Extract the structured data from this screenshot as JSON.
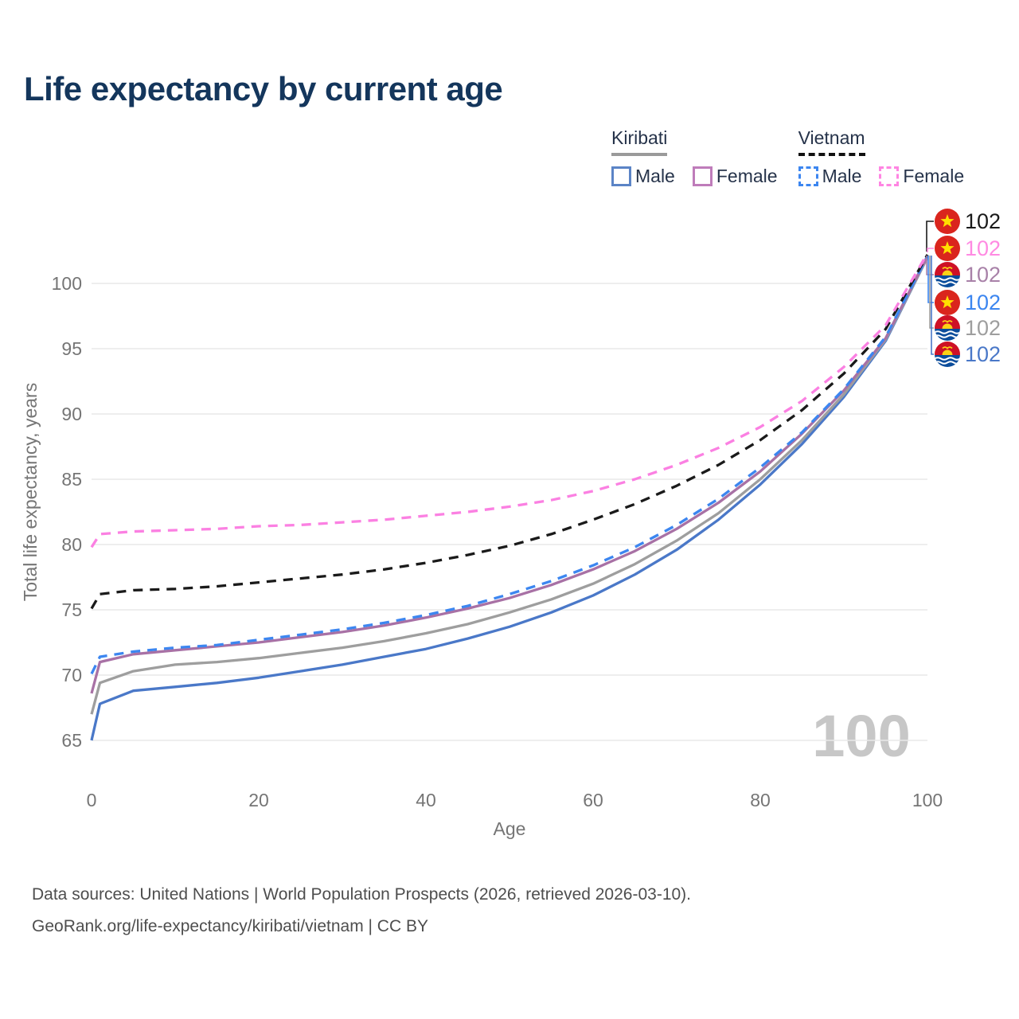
{
  "title": "Life expectancy by current age",
  "legend": {
    "kiribati": {
      "title": "Kiribati",
      "male": "Male",
      "female": "Female"
    },
    "vietnam": {
      "title": "Vietnam",
      "male": "Male",
      "female": "Female"
    }
  },
  "footer": {
    "line1": "Data sources: United Nations | World Population Prospects (2026, retrieved 2026-03-10).",
    "line2": "GeoRank.org/life-expectancy/kiribati/vietnam | CC BY"
  },
  "colors": {
    "title_text": "#14365c",
    "axis_text": "#757575",
    "gridline": "#e9e9e9",
    "watermark": "#c7c7c7",
    "vietnam_flag_red": "#da251d",
    "vietnam_flag_star": "#ffdf00",
    "kiribati_flag_red": "#ce1126",
    "kiribati_flag_blue": "#0a4c9b",
    "kiribati_flag_yellow": "#fcd116"
  },
  "chart_data": {
    "type": "line",
    "title": "Life expectancy by current age",
    "xlabel": "Age",
    "ylabel": "Total life expectancy, years",
    "xlim": [
      0,
      100
    ],
    "ylim": [
      65,
      102.5
    ],
    "x_ticks": [
      0,
      20,
      40,
      60,
      80,
      100
    ],
    "y_ticks": [
      65,
      70,
      75,
      80,
      85,
      90,
      95,
      100
    ],
    "grid": "horizontal",
    "legend_position": "top-right",
    "age_indicator": "100",
    "x": [
      0,
      1,
      5,
      10,
      15,
      20,
      25,
      30,
      35,
      40,
      45,
      50,
      55,
      60,
      65,
      70,
      75,
      80,
      85,
      90,
      95,
      100
    ],
    "series": [
      {
        "name": "Vietnam Female",
        "country": "Vietnam",
        "sex": "Female",
        "style": "dashed",
        "color": "#fb80e2",
        "values": [
          79.8,
          80.8,
          81.0,
          81.1,
          81.2,
          81.4,
          81.5,
          81.7,
          81.9,
          82.2,
          82.5,
          82.9,
          83.4,
          84.1,
          85.0,
          86.1,
          87.4,
          89.0,
          91.0,
          93.6,
          96.8,
          102.3
        ]
      },
      {
        "name": "Vietnam (both sexes)",
        "country": "Vietnam",
        "sex": "All",
        "style": "dashed",
        "color": "#1a1a1a",
        "values": [
          75.1,
          76.2,
          76.5,
          76.6,
          76.8,
          77.1,
          77.4,
          77.7,
          78.1,
          78.6,
          79.2,
          79.9,
          80.8,
          81.9,
          83.1,
          84.5,
          86.1,
          88.0,
          90.3,
          93.1,
          96.5,
          102.2
        ]
      },
      {
        "name": "Vietnam Male",
        "country": "Vietnam",
        "sex": "Male",
        "style": "dashed",
        "color": "#3c86f0",
        "values": [
          70.1,
          71.4,
          71.8,
          72.1,
          72.3,
          72.7,
          73.1,
          73.5,
          74.0,
          74.6,
          75.3,
          76.2,
          77.2,
          78.4,
          79.8,
          81.5,
          83.5,
          85.9,
          88.6,
          91.9,
          95.9,
          102.1
        ]
      },
      {
        "name": "Kiribati Female",
        "country": "Kiribati",
        "sex": "Female",
        "style": "solid",
        "color": "#a871a5",
        "values": [
          68.6,
          71.0,
          71.6,
          71.9,
          72.2,
          72.5,
          72.9,
          73.3,
          73.8,
          74.4,
          75.1,
          75.9,
          76.9,
          78.1,
          79.5,
          81.2,
          83.2,
          85.6,
          88.5,
          91.8,
          95.8,
          102.1
        ]
      },
      {
        "name": "Kiribati (both sexes)",
        "country": "Kiribati",
        "sex": "All",
        "style": "solid",
        "color": "#9e9e9e",
        "values": [
          67.0,
          69.4,
          70.3,
          70.8,
          71.0,
          71.3,
          71.7,
          72.1,
          72.6,
          73.2,
          73.9,
          74.8,
          75.8,
          77.0,
          78.5,
          80.3,
          82.4,
          85.0,
          88.0,
          91.5,
          95.7,
          102.0
        ]
      },
      {
        "name": "Kiribati Male",
        "country": "Kiribati",
        "sex": "Male",
        "style": "solid",
        "color": "#4a78c8",
        "values": [
          65.0,
          67.8,
          68.8,
          69.1,
          69.4,
          69.8,
          70.3,
          70.8,
          71.4,
          72.0,
          72.8,
          73.7,
          74.8,
          76.1,
          77.7,
          79.6,
          81.9,
          84.6,
          87.7,
          91.3,
          95.6,
          102.0
        ]
      }
    ],
    "end_labels": [
      {
        "country": "Vietnam",
        "series": "Vietnam (both sexes)",
        "value": "102",
        "color": "#1a1a1a"
      },
      {
        "country": "Vietnam",
        "series": "Vietnam Female",
        "value": "102",
        "color": "#ff8ae2"
      },
      {
        "country": "Kiribati",
        "series": "Kiribati Female",
        "value": "102",
        "color": "#a881a8"
      },
      {
        "country": "Vietnam",
        "series": "Vietnam Male",
        "value": "102",
        "color": "#3c86f0"
      },
      {
        "country": "Kiribati",
        "series": "Kiribati (both sexes)",
        "value": "102",
        "color": "#9e9e9e"
      },
      {
        "country": "Kiribati",
        "series": "Kiribati Male",
        "value": "102",
        "color": "#4a78c8"
      }
    ]
  }
}
